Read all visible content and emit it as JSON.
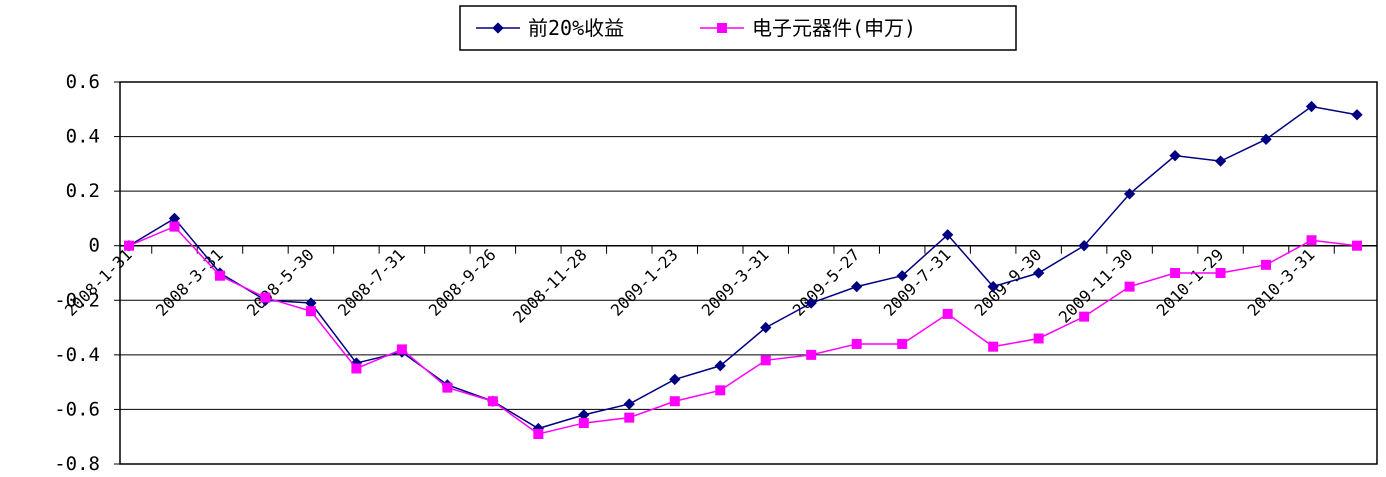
{
  "chart_data": {
    "type": "line",
    "title": "",
    "xlabel": "",
    "ylabel": "",
    "ylim": [
      -0.8,
      0.6
    ],
    "yticks": [
      0.6,
      0.4,
      0.2,
      0,
      -0.2,
      -0.4,
      -0.6,
      -0.8
    ],
    "ytick_labels": [
      "0.6",
      "0.4",
      "0.2",
      "0",
      "-0.2",
      "-0.4",
      "-0.6",
      "-0.8"
    ],
    "grid": "horizontal",
    "legend_position": "top-center",
    "x_tick_labels": [
      "2008-1-31",
      "2008-3-31",
      "2008-5-30",
      "2008-7-31",
      "2008-9-26",
      "2008-11-28",
      "2009-1-23",
      "2009-3-31",
      "2009-5-27",
      "2009-7-31",
      "2009-9-30",
      "2009-11-30",
      "2010-1-29",
      "2010-3-31"
    ],
    "series": [
      {
        "name": "前20%收益",
        "color": "#000080",
        "marker": "diamond",
        "values": [
          0,
          0.1,
          -0.1,
          -0.2,
          -0.21,
          -0.43,
          -0.39,
          -0.51,
          -0.57,
          -0.67,
          -0.62,
          -0.58,
          -0.49,
          -0.44,
          -0.3,
          -0.21,
          -0.15,
          -0.11,
          0.04,
          -0.15,
          -0.1,
          0.0,
          0.19,
          0.33,
          0.31,
          0.39,
          0.51,
          0.48
        ]
      },
      {
        "name": "电子元器件(申万)",
        "color": "#ff00ff",
        "marker": "square",
        "values": [
          0,
          0.07,
          -0.11,
          -0.19,
          -0.24,
          -0.45,
          -0.38,
          -0.52,
          -0.57,
          -0.69,
          -0.65,
          -0.63,
          -0.57,
          -0.53,
          -0.42,
          -0.4,
          -0.36,
          -0.36,
          -0.25,
          -0.37,
          -0.34,
          -0.26,
          -0.15,
          -0.1,
          -0.1,
          -0.07,
          0.02,
          0.0
        ]
      }
    ]
  }
}
